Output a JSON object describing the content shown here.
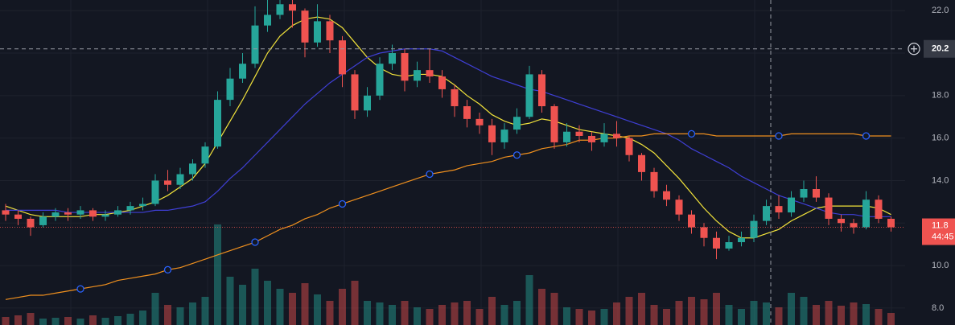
{
  "chart_data": {
    "type": "candlestick",
    "ylim": [
      7.2,
      22.5
    ],
    "yticks": [
      {
        "value": 8,
        "label": "8.0"
      },
      {
        "value": 10,
        "label": "10.0"
      },
      {
        "value": 12,
        "label": "12.0"
      },
      {
        "value": 14,
        "label": "14.0"
      },
      {
        "value": 16,
        "label": "16.0"
      },
      {
        "value": 18,
        "label": "18.0"
      },
      {
        "value": 20,
        "label": "20.0"
      },
      {
        "value": 22,
        "label": "22.0"
      }
    ],
    "grid": true,
    "up_color": "#26a69a",
    "down_color": "#ef5350",
    "open": [
      12.6,
      12.4,
      12.2,
      11.9,
      12.3,
      12.5,
      12.4,
      12.6,
      12.3,
      12.4,
      12.6,
      12.8,
      12.9,
      14.0,
      13.8,
      14.3,
      14.8,
      15.6,
      17.8,
      18.8,
      19.5,
      21.3,
      21.8,
      22.3,
      22.0,
      20.5,
      21.5,
      20.6,
      19.0,
      17.3,
      18.0,
      19.5,
      20.0,
      18.7,
      19.2,
      18.9,
      18.3,
      17.5,
      16.9,
      16.6,
      15.8,
      16.4,
      17.0,
      19.0,
      17.5,
      15.8,
      16.3,
      16.1,
      15.8,
      16.2,
      16.0,
      15.2,
      14.4,
      13.5,
      13.1,
      12.4,
      11.8,
      11.3,
      10.8,
      11.1,
      11.3,
      12.1,
      12.8,
      12.5,
      13.2,
      13.6,
      13.2,
      12.2,
      12.0,
      11.8,
      13.1,
      12.2
    ],
    "high": [
      12.9,
      12.6,
      12.3,
      12.5,
      12.7,
      12.7,
      12.8,
      12.7,
      12.6,
      12.8,
      13.0,
      13.2,
      14.3,
      14.5,
      14.6,
      15.0,
      15.8,
      18.2,
      19.3,
      20.0,
      22.2,
      22.6,
      22.8,
      22.7,
      22.1,
      22.3,
      21.8,
      20.8,
      19.2,
      18.4,
      19.8,
      20.4,
      20.2,
      19.6,
      20.2,
      19.2,
      18.5,
      17.8,
      17.2,
      16.9,
      16.7,
      17.4,
      19.4,
      19.2,
      17.6,
      16.7,
      16.6,
      16.3,
      16.7,
      16.8,
      16.1,
      15.3,
      14.6,
      13.8,
      13.3,
      12.6,
      12.0,
      11.6,
      11.4,
      11.6,
      12.4,
      13.1,
      13.3,
      13.5,
      14.0,
      14.2,
      13.4,
      12.4,
      12.2,
      13.5,
      13.3,
      12.3
    ],
    "low": [
      12.1,
      11.9,
      11.4,
      11.8,
      12.1,
      12.1,
      12.2,
      12.1,
      12.1,
      12.3,
      12.4,
      12.6,
      12.8,
      13.5,
      13.6,
      14.0,
      14.6,
      15.5,
      17.5,
      18.6,
      19.3,
      21.0,
      21.6,
      21.2,
      19.8,
      20.3,
      20.0,
      18.4,
      16.9,
      17.0,
      17.8,
      19.2,
      18.2,
      18.4,
      18.6,
      17.9,
      17.0,
      16.5,
      16.2,
      15.2,
      15.5,
      16.2,
      16.9,
      17.2,
      15.5,
      15.6,
      15.8,
      15.4,
      15.6,
      15.6,
      14.9,
      14.0,
      13.2,
      12.8,
      12.1,
      11.5,
      10.9,
      10.3,
      10.7,
      10.9,
      11.1,
      11.9,
      12.2,
      12.3,
      13.0,
      13.0,
      11.9,
      11.6,
      11.5,
      11.7,
      12.0,
      11.6
    ],
    "close": [
      12.4,
      12.2,
      11.8,
      12.3,
      12.5,
      12.4,
      12.6,
      12.3,
      12.4,
      12.6,
      12.8,
      12.9,
      14.0,
      13.8,
      14.3,
      14.8,
      15.6,
      17.8,
      18.8,
      19.5,
      21.3,
      21.8,
      22.3,
      22.0,
      20.5,
      21.5,
      20.6,
      19.0,
      17.3,
      18.0,
      19.5,
      20.0,
      18.7,
      19.2,
      18.9,
      18.3,
      17.5,
      16.9,
      16.6,
      15.8,
      16.4,
      17.0,
      19.0,
      17.5,
      15.8,
      16.3,
      16.1,
      15.8,
      16.2,
      16.0,
      15.2,
      14.4,
      13.5,
      13.1,
      12.4,
      11.8,
      11.3,
      10.8,
      11.1,
      11.3,
      12.1,
      12.8,
      12.5,
      13.2,
      13.6,
      13.2,
      12.2,
      12.0,
      11.8,
      13.1,
      12.2,
      11.8
    ],
    "volume": [
      10,
      12,
      15,
      8,
      9,
      10,
      8,
      12,
      9,
      11,
      14,
      18,
      40,
      25,
      22,
      28,
      35,
      125,
      60,
      50,
      70,
      55,
      45,
      40,
      52,
      38,
      30,
      45,
      55,
      30,
      28,
      25,
      30,
      22,
      20,
      25,
      28,
      30,
      20,
      35,
      25,
      30,
      62,
      45,
      40,
      22,
      20,
      18,
      20,
      28,
      35,
      40,
      25,
      20,
      30,
      35,
      32,
      40,
      25,
      20,
      30,
      28,
      22,
      40,
      35,
      25,
      30,
      24,
      28,
      26,
      20,
      15
    ],
    "series": [
      {
        "color": "#f2e33b",
        "values": [
          12.8,
          12.6,
          12.4,
          12.3,
          12.3,
          12.3,
          12.3,
          12.4,
          12.4,
          12.5,
          12.6,
          12.8,
          13.0,
          13.3,
          13.7,
          14.1,
          14.8,
          15.8,
          16.8,
          17.8,
          18.9,
          20.0,
          20.8,
          21.3,
          21.6,
          21.7,
          21.6,
          21.2,
          20.5,
          19.8,
          19.3,
          19.0,
          18.9,
          19.0,
          19.0,
          18.9,
          18.5,
          18.0,
          17.6,
          17.1,
          16.8,
          16.6,
          16.7,
          16.9,
          16.8,
          16.6,
          16.4,
          16.3,
          16.2,
          16.1,
          16.0,
          15.7,
          15.3,
          14.7,
          14.1,
          13.4,
          12.7,
          12.1,
          11.6,
          11.3,
          11.3,
          11.5,
          11.7,
          12.1,
          12.4,
          12.7,
          12.8,
          12.8,
          12.8,
          12.8,
          12.7,
          12.4
        ]
      },
      {
        "color": "#3f3fd6",
        "values": [
          12.6,
          12.6,
          12.6,
          12.6,
          12.6,
          12.5,
          12.5,
          12.5,
          12.5,
          12.5,
          12.5,
          12.5,
          12.6,
          12.6,
          12.7,
          12.8,
          13.0,
          13.5,
          14.1,
          14.6,
          15.2,
          15.8,
          16.4,
          17.0,
          17.6,
          18.1,
          18.6,
          19.0,
          19.4,
          19.8,
          20.0,
          20.1,
          20.2,
          20.2,
          20.2,
          20.1,
          19.8,
          19.5,
          19.2,
          18.9,
          18.7,
          18.5,
          18.3,
          18.2,
          18.0,
          17.8,
          17.6,
          17.4,
          17.2,
          17.0,
          16.8,
          16.6,
          16.4,
          16.2,
          15.9,
          15.5,
          15.2,
          14.9,
          14.6,
          14.2,
          13.9,
          13.6,
          13.3,
          13.1,
          12.9,
          12.7,
          12.5,
          12.4,
          12.4,
          12.3,
          12.3,
          12.3
        ]
      },
      {
        "color": "#f0901e",
        "markers": true,
        "values": [
          8.4,
          8.5,
          8.6,
          8.6,
          8.7,
          8.8,
          8.9,
          9.0,
          9.1,
          9.3,
          9.4,
          9.5,
          9.6,
          9.8,
          9.9,
          10.1,
          10.3,
          10.5,
          10.7,
          10.9,
          11.1,
          11.4,
          11.7,
          11.9,
          12.2,
          12.4,
          12.7,
          12.9,
          13.1,
          13.3,
          13.5,
          13.7,
          13.9,
          14.1,
          14.3,
          14.4,
          14.5,
          14.7,
          14.8,
          14.9,
          15.1,
          15.2,
          15.3,
          15.5,
          15.6,
          15.7,
          15.9,
          15.9,
          16.0,
          16.0,
          16.1,
          16.1,
          16.2,
          16.2,
          16.2,
          16.2,
          16.2,
          16.1,
          16.1,
          16.1,
          16.1,
          16.1,
          16.1,
          16.2,
          16.2,
          16.2,
          16.2,
          16.2,
          16.2,
          16.1,
          16.1,
          16.1
        ]
      }
    ],
    "crosshair_price": 20.2,
    "last_price": 11.8,
    "countdown": "44:45"
  }
}
